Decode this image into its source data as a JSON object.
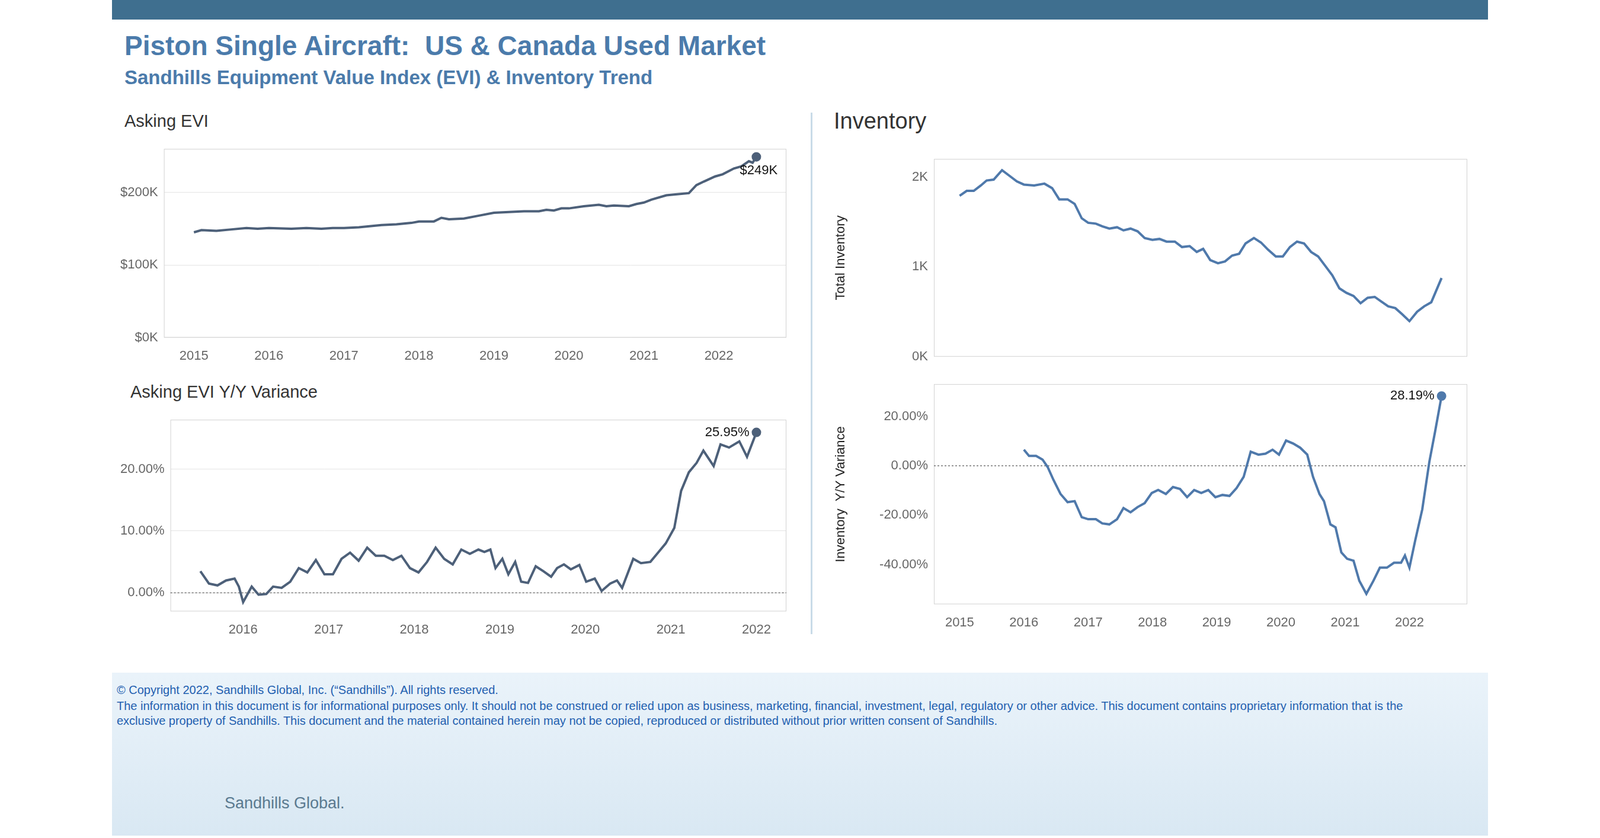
{
  "header": {
    "title": "Piston Single Aircraft:  US & Canada Used Market",
    "subtitle": "Sandhills Equipment Value Index (EVI) & Inventory Trend"
  },
  "chart_data": [
    {
      "type": "line",
      "title": "Asking EVI",
      "color": "#4d6079",
      "marker": "end",
      "grid": true,
      "x": [
        2015.0,
        2015.1,
        2015.3,
        2015.5,
        2015.7,
        2015.85,
        2016.0,
        2016.3,
        2016.5,
        2016.7,
        2016.85,
        2017.0,
        2017.2,
        2017.4,
        2017.5,
        2017.7,
        2017.9,
        2018.0,
        2018.2,
        2018.3,
        2018.4,
        2018.6,
        2018.8,
        2019.0,
        2019.2,
        2019.4,
        2019.6,
        2019.7,
        2019.8,
        2019.9,
        2020.0,
        2020.2,
        2020.4,
        2020.5,
        2020.6,
        2020.8,
        2020.9,
        2021.0,
        2021.1,
        2021.3,
        2021.4,
        2021.6,
        2021.7,
        2021.8,
        2021.95,
        2022.05,
        2022.2,
        2022.3,
        2022.4,
        2022.45,
        2022.5
      ],
      "values": [
        145000,
        148000,
        147000,
        149000,
        151000,
        150000,
        151000,
        150000,
        151000,
        150000,
        151000,
        151000,
        152000,
        154000,
        155000,
        156000,
        158000,
        160000,
        160000,
        165000,
        163000,
        164000,
        168000,
        172000,
        173000,
        174000,
        174000,
        176000,
        175000,
        178000,
        178000,
        181000,
        183000,
        181000,
        182000,
        181000,
        184000,
        186000,
        190000,
        196000,
        197000,
        199000,
        210000,
        215000,
        222000,
        225000,
        233000,
        236000,
        243000,
        241000,
        249000
      ],
      "xlim": [
        2014.6,
        2022.9
      ],
      "ylim": [
        0,
        260000
      ],
      "xticks": [
        2015,
        2016,
        2017,
        2018,
        2019,
        2020,
        2021,
        2022
      ],
      "yticks": [
        {
          "value": 0,
          "label": "$0K"
        },
        {
          "value": 100000,
          "label": "$100K"
        },
        {
          "value": 200000,
          "label": "$200K"
        }
      ],
      "annotations": [
        {
          "text": "$249K",
          "x": 2022.5,
          "y": 249000
        }
      ]
    },
    {
      "type": "line",
      "title": "Asking EVI Y/Y Variance",
      "color": "#4d6079",
      "marker": "end",
      "grid": true,
      "x": [
        2015.5,
        2015.6,
        2015.7,
        2015.8,
        2015.9,
        2015.95,
        2016.0,
        2016.1,
        2016.18,
        2016.27,
        2016.35,
        2016.45,
        2016.55,
        2016.65,
        2016.75,
        2016.85,
        2016.95,
        2017.05,
        2017.15,
        2017.25,
        2017.35,
        2017.45,
        2017.55,
        2017.65,
        2017.75,
        2017.85,
        2017.95,
        2018.05,
        2018.15,
        2018.25,
        2018.35,
        2018.45,
        2018.55,
        2018.65,
        2018.75,
        2018.82,
        2018.89,
        2018.95,
        2019.03,
        2019.1,
        2019.18,
        2019.25,
        2019.33,
        2019.42,
        2019.51,
        2019.6,
        2019.67,
        2019.75,
        2019.83,
        2019.93,
        2020.01,
        2020.11,
        2020.19,
        2020.29,
        2020.37,
        2020.43,
        2020.56,
        2020.65,
        2020.76,
        2020.85,
        2020.94,
        2021.04,
        2021.12,
        2021.21,
        2021.3,
        2021.38,
        2021.5,
        2021.58,
        2021.68,
        2021.8,
        2021.89,
        2022.0
      ],
      "values": [
        3.5,
        1.5,
        1.2,
        2.0,
        2.3,
        1.0,
        -1.5,
        1.0,
        -0.3,
        -0.2,
        1.0,
        0.8,
        1.8,
        4.0,
        3.3,
        5.3,
        3.0,
        3.0,
        5.5,
        6.5,
        5.2,
        7.3,
        6.0,
        6.0,
        5.3,
        6.0,
        4.0,
        3.3,
        5.0,
        7.3,
        5.5,
        4.6,
        7.0,
        6.3,
        7.0,
        6.6,
        7.0,
        4.0,
        5.5,
        3.0,
        5.0,
        1.8,
        1.6,
        4.3,
        3.5,
        2.6,
        4.0,
        4.6,
        3.8,
        4.5,
        1.8,
        2.3,
        0.3,
        1.5,
        2.0,
        0.8,
        5.5,
        4.8,
        5.0,
        6.5,
        8.0,
        10.5,
        16.5,
        19.5,
        21.0,
        23.0,
        20.5,
        24.0,
        23.5,
        24.5,
        22.0,
        25.95
      ],
      "xlim": [
        2015.15,
        2022.35
      ],
      "ylim": [
        -3,
        28
      ],
      "xticks": [
        2016,
        2017,
        2018,
        2019,
        2020,
        2021,
        2022
      ],
      "yticks": [
        {
          "value": 0,
          "label": "0.00%"
        },
        {
          "value": 10,
          "label": "10.00%"
        },
        {
          "value": 20,
          "label": "20.00%"
        }
      ],
      "annotations": [
        {
          "text": "25.95%",
          "x": 2022.0,
          "y": 25.95
        }
      ]
    },
    {
      "type": "line",
      "title": "Inventory",
      "y_label": "Total Inventory",
      "color": "#4f79ab",
      "grid": false,
      "tick_labels": "y",
      "x": [
        2015.0,
        2015.11,
        2015.22,
        2015.33,
        2015.42,
        2015.53,
        2015.66,
        2015.78,
        2015.89,
        2016.0,
        2016.16,
        2016.32,
        2016.44,
        2016.55,
        2016.68,
        2016.79,
        2016.9,
        2017.0,
        2017.12,
        2017.22,
        2017.33,
        2017.45,
        2017.55,
        2017.66,
        2017.77,
        2017.88,
        2018.0,
        2018.11,
        2018.22,
        2018.35,
        2018.46,
        2018.58,
        2018.69,
        2018.79,
        2018.9,
        2019.02,
        2019.13,
        2019.24,
        2019.35,
        2019.45,
        2019.58,
        2019.69,
        2019.8,
        2019.92,
        2020.03,
        2020.14,
        2020.25,
        2020.36,
        2020.47,
        2020.58,
        2020.69,
        2020.8,
        2020.91,
        2021.02,
        2021.13,
        2021.24,
        2021.35,
        2021.46,
        2021.56,
        2021.67,
        2021.78,
        2021.89,
        2022.0,
        2022.12,
        2022.23,
        2022.34,
        2022.5
      ],
      "values": [
        1790,
        1845,
        1845,
        1905,
        1960,
        1970,
        2075,
        2010,
        1950,
        1915,
        1905,
        1925,
        1875,
        1750,
        1750,
        1700,
        1540,
        1490,
        1480,
        1450,
        1425,
        1440,
        1405,
        1425,
        1395,
        1320,
        1300,
        1310,
        1280,
        1280,
        1220,
        1230,
        1165,
        1200,
        1075,
        1040,
        1060,
        1125,
        1145,
        1260,
        1320,
        1270,
        1190,
        1115,
        1115,
        1220,
        1280,
        1260,
        1165,
        1115,
        1010,
        905,
        760,
        710,
        675,
        595,
        655,
        665,
        615,
        560,
        540,
        470,
        395,
        500,
        560,
        605,
        875
      ],
      "xlim": [
        2014.6,
        2022.9
      ],
      "ylim": [
        0,
        2200
      ],
      "xticks": [
        2015,
        2016,
        2017,
        2018,
        2019,
        2020,
        2021,
        2022
      ],
      "yticks": [
        {
          "value": 0,
          "label": "0K"
        },
        {
          "value": 1000,
          "label": "1K"
        },
        {
          "value": 2000,
          "label": "2K"
        }
      ]
    },
    {
      "type": "line",
      "y_label": "Inventory  Y/Y Variance",
      "color": "#4f79ab",
      "marker": "end",
      "grid": false,
      "x": [
        2016.0,
        2016.08,
        2016.19,
        2016.29,
        2016.37,
        2016.46,
        2016.57,
        2016.68,
        2016.79,
        2016.9,
        2017.0,
        2017.12,
        2017.22,
        2017.33,
        2017.45,
        2017.55,
        2017.66,
        2017.77,
        2017.88,
        2017.99,
        2018.09,
        2018.21,
        2018.32,
        2018.43,
        2018.54,
        2018.65,
        2018.76,
        2018.87,
        2018.98,
        2019.09,
        2019.2,
        2019.31,
        2019.42,
        2019.53,
        2019.65,
        2019.76,
        2019.87,
        2019.97,
        2020.08,
        2020.19,
        2020.3,
        2020.41,
        2020.5,
        2020.6,
        2020.67,
        2020.77,
        2020.85,
        2020.94,
        2021.03,
        2021.13,
        2021.22,
        2021.33,
        2021.44,
        2021.54,
        2021.65,
        2021.76,
        2021.87,
        2021.93,
        2022.0,
        2022.09,
        2022.2,
        2022.31,
        2022.4,
        2022.5
      ],
      "values": [
        6.5,
        4.0,
        4.0,
        2.5,
        -0.5,
        -5.7,
        -11.4,
        -14.7,
        -14.3,
        -20.8,
        -21.6,
        -21.6,
        -23.3,
        -23.7,
        -21.6,
        -17.1,
        -18.8,
        -16.7,
        -15.1,
        -11.0,
        -9.8,
        -11.4,
        -8.6,
        -9.4,
        -12.7,
        -9.8,
        -11.0,
        -9.8,
        -12.7,
        -11.8,
        -12.2,
        -9.0,
        -4.5,
        5.7,
        4.5,
        4.9,
        6.5,
        4.5,
        10.2,
        9.0,
        7.3,
        4.5,
        -4.5,
        -11.4,
        -14.3,
        -23.7,
        -24.9,
        -35.0,
        -37.6,
        -38.4,
        -46.5,
        -51.8,
        -46.5,
        -41.2,
        -41.2,
        -39.2,
        -39.2,
        -36.3,
        -41.2,
        -30.2,
        -17.6,
        1.6,
        13.9,
        28.19
      ],
      "xlim": [
        2014.6,
        2022.9
      ],
      "ylim": [
        -56,
        33
      ],
      "xticks": [
        2015,
        2016,
        2017,
        2018,
        2019,
        2020,
        2021,
        2022
      ],
      "yticks": [
        {
          "value": -40,
          "label": "-40.00%"
        },
        {
          "value": -20,
          "label": "-20.00%"
        },
        {
          "value": 0,
          "label": "0.00%"
        },
        {
          "value": 20,
          "label": "20.00%"
        }
      ],
      "annotations": [
        {
          "text": "28.19%",
          "x": 2022.5,
          "y": 28.19
        }
      ]
    }
  ],
  "footer": {
    "copyright": "© Copyright 2022, Sandhills Global, Inc. (“Sandhills”). All rights reserved.",
    "disclaimer": "The information in this document is for informational purposes only.  It should not be construed or relied upon as business, marketing, financial, investment, legal, regulatory or other advice. This document contains proprietary information that is the exclusive property of Sandhills. This document and the material contained herein may not be copied, reproduced or distributed without prior written consent of Sandhills.",
    "logo": "Sandhills Global."
  }
}
